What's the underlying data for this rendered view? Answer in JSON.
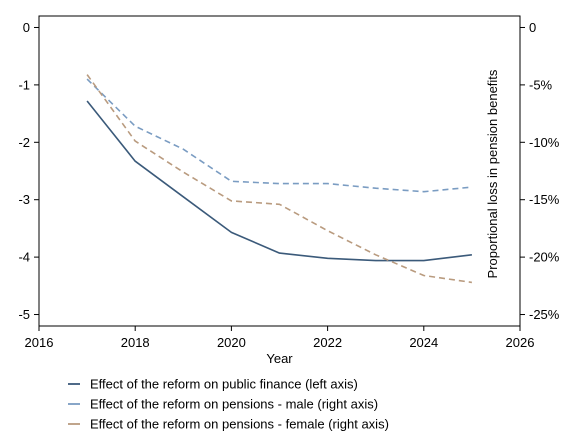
{
  "chart_data": {
    "type": "line",
    "title": "",
    "xlabel": "Year",
    "ylabel": "",
    "ylabel_right": "Proportional loss in pension benefits",
    "xlim": [
      2016,
      2026
    ],
    "xticks": [
      2016,
      2018,
      2020,
      2022,
      2024,
      2026
    ],
    "ylim_left": [
      -5.2,
      0.2
    ],
    "yticks_left": [
      0,
      -1,
      -2,
      -3,
      -4,
      -5
    ],
    "yticks_left_labels": [
      "0",
      "-1",
      "-2",
      "-3",
      "-4",
      "-5"
    ],
    "ylim_right": [
      -26,
      1
    ],
    "yticks_right": [
      0,
      -5,
      -10,
      -15,
      -20,
      -25
    ],
    "yticks_right_labels": [
      "0",
      "-5%",
      "-10%",
      "-15%",
      "-20%",
      "-25%"
    ],
    "grid": false,
    "legend_position": "bottom",
    "series": [
      {
        "name": "Effect of the reform on public finance (left axis)",
        "axis": "left",
        "style": "solid",
        "color": "#3b5a7a",
        "x": [
          2017,
          2018,
          2019,
          2020,
          2021,
          2022,
          2023,
          2024,
          2025
        ],
        "y": [
          -1.28,
          -2.33,
          -2.95,
          -3.57,
          -3.93,
          -4.02,
          -4.06,
          -4.06,
          -3.96
        ]
      },
      {
        "name": "Effect of the reform on pensions - male (right axis)",
        "axis": "right",
        "style": "dashed",
        "color": "#7a9cc2",
        "x": [
          2017,
          2018,
          2019,
          2020,
          2021,
          2022,
          2023,
          2024,
          2025
        ],
        "y": [
          -4.5,
          -8.6,
          -10.6,
          -13.4,
          -13.6,
          -13.6,
          -14.0,
          -14.3,
          -13.9
        ]
      },
      {
        "name": "Effect of the reform on pensions - female (right axis)",
        "axis": "right",
        "style": "dashed",
        "color": "#b99b7f",
        "x": [
          2017,
          2018,
          2019,
          2020,
          2021,
          2022,
          2023,
          2024,
          2025
        ],
        "y": [
          -4.1,
          -9.9,
          -12.6,
          -15.1,
          -15.4,
          -17.7,
          -19.8,
          -21.6,
          -22.2
        ]
      }
    ]
  }
}
